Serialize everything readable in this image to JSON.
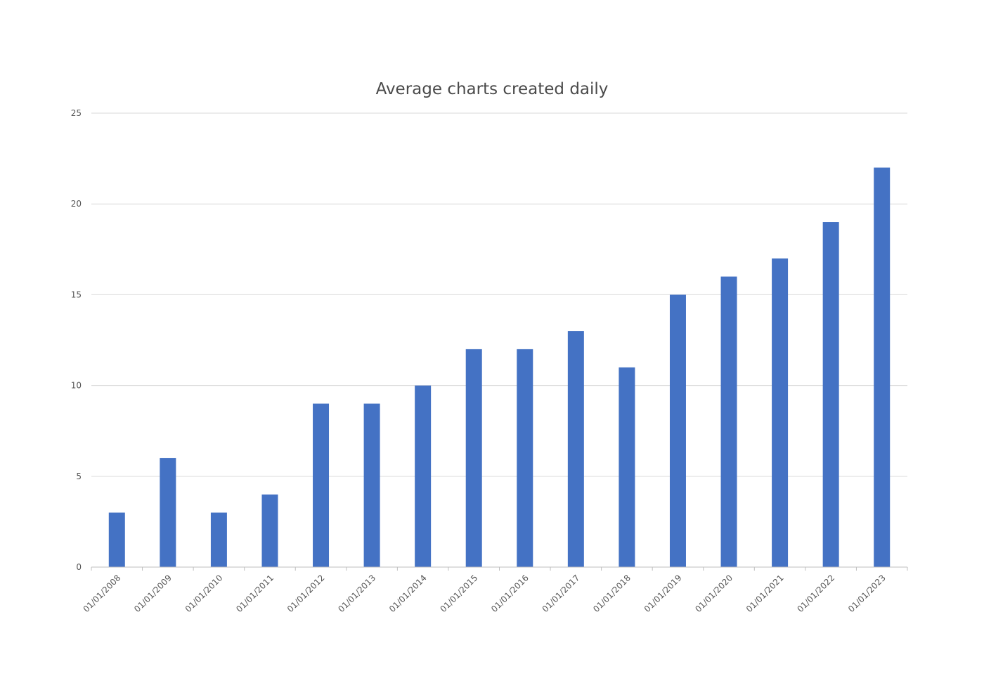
{
  "chart_data": {
    "type": "bar",
    "title": "Average charts created daily",
    "xlabel": "",
    "ylabel": "",
    "categories": [
      "01/01/2008",
      "01/01/2009",
      "01/01/2010",
      "01/01/2011",
      "01/01/2012",
      "01/01/2013",
      "01/01/2014",
      "01/01/2015",
      "01/01/2016",
      "01/01/2017",
      "01/01/2018",
      "01/01/2019",
      "01/01/2020",
      "01/01/2021",
      "01/01/2022",
      "01/01/2023"
    ],
    "series": [
      {
        "name": "Average charts created daily",
        "values": [
          3,
          6,
          3,
          4,
          9,
          9,
          10,
          12,
          12,
          13,
          11,
          15,
          16,
          17,
          19,
          22
        ]
      }
    ],
    "ylim": [
      0,
      25
    ],
    "yticks": [
      0,
      5,
      10,
      15,
      20,
      25
    ],
    "grid": true,
    "legend": "none",
    "colors": {
      "bar": "#4472C4",
      "grid": "#d9d9d9",
      "axis": "#bfbfbf",
      "text": "#595959"
    }
  }
}
